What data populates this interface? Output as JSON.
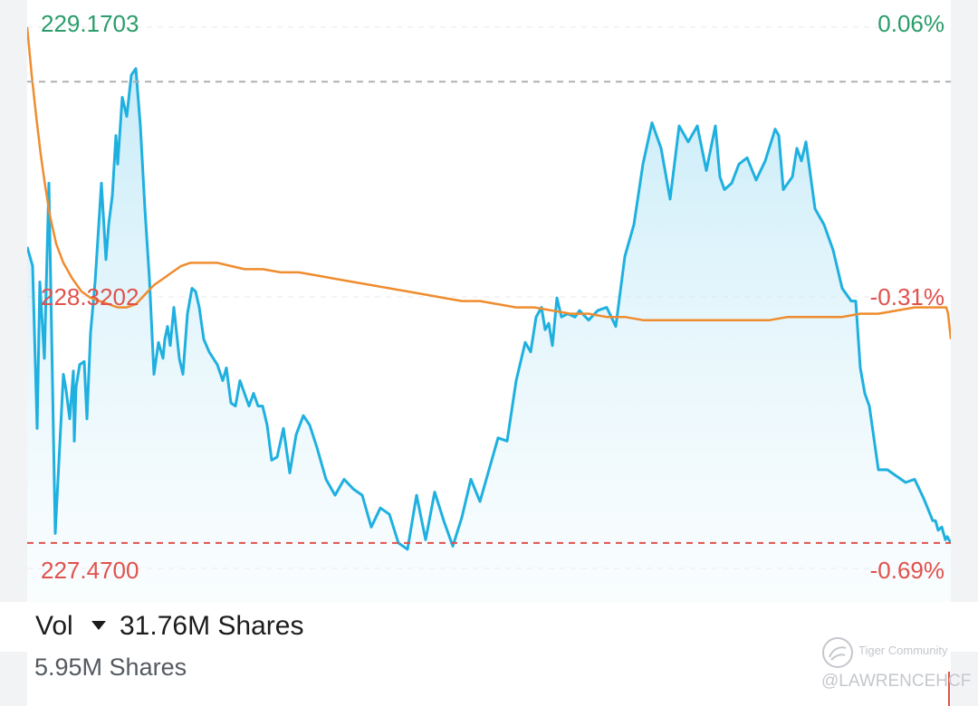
{
  "chart_data": {
    "type": "line",
    "y_labels": {
      "top_price": "229.1703",
      "mid_price": "228.3202",
      "bottom_price": "227.4700",
      "top_pct": "0.06%",
      "mid_pct": "-0.31%",
      "bottom_pct": "-0.69%"
    },
    "ylim": [
      227.47,
      229.1703
    ],
    "reference_lines": {
      "upper_dashed": 228.999,
      "lower_dashed": 227.55
    },
    "series": [
      {
        "line_color": "#1fb0e0",
        "fill": true,
        "x": [
          0,
          6,
          11,
          14,
          19,
          24,
          31,
          40,
          43,
          47,
          51,
          52,
          54,
          58,
          63,
          66,
          70,
          75,
          82,
          87,
          90,
          94,
          98,
          100,
          105,
          110,
          115,
          120,
          125,
          130,
          135,
          140,
          145,
          150,
          152,
          155,
          158,
          162,
          168,
          172,
          177,
          182,
          186,
          190,
          195,
          201,
          210,
          216,
          220,
          225,
          230,
          235,
          240,
          245,
          250,
          255,
          260,
          265,
          270,
          276,
          283,
          290,
          297,
          305,
          312,
          320,
          330,
          340,
          350,
          360,
          370,
          380,
          390,
          400,
          410,
          420,
          430,
          440,
          450,
          460,
          470,
          480,
          490,
          500,
          510,
          520,
          530,
          540,
          550,
          556,
          562,
          568,
          572,
          576,
          580,
          585,
          590,
          597,
          605,
          610,
          620,
          630,
          640,
          650,
          660,
          670,
          680,
          690,
          700,
          710,
          720,
          730,
          740,
          750,
          755,
          760,
          765,
          770,
          778,
          786,
          795,
          805,
          815,
          826,
          830,
          835,
          840,
          845,
          850,
          855,
          860,
          870,
          880,
          890,
          900,
          910,
          915,
          920,
          925,
          930,
          940,
          950,
          960,
          970,
          980,
          990,
          1000,
          1003,
          1006,
          1010,
          1014,
          1016,
          1020
        ],
        "values": [
          228.48,
          228.42,
          227.91,
          228.37,
          228.13,
          228.68,
          227.58,
          228.08,
          228.03,
          227.94,
          228.09,
          227.87,
          228.04,
          228.11,
          228.12,
          227.94,
          228.21,
          228.37,
          228.68,
          228.44,
          228.55,
          228.64,
          228.83,
          228.74,
          228.95,
          228.89,
          229.02,
          229.04,
          228.86,
          228.6,
          228.38,
          228.08,
          228.18,
          228.13,
          228.19,
          228.23,
          228.17,
          228.29,
          228.13,
          228.08,
          228.27,
          228.35,
          228.34,
          228.29,
          228.19,
          228.15,
          228.11,
          228.06,
          228.1,
          227.99,
          227.98,
          228.06,
          228.02,
          227.98,
          228.02,
          227.98,
          227.98,
          227.92,
          227.81,
          227.82,
          227.91,
          227.77,
          227.89,
          227.95,
          227.92,
          227.85,
          227.75,
          227.7,
          227.75,
          227.72,
          227.7,
          227.6,
          227.66,
          227.64,
          227.55,
          227.53,
          227.7,
          227.56,
          227.71,
          227.62,
          227.54,
          227.63,
          227.75,
          227.68,
          227.78,
          227.88,
          227.87,
          228.06,
          228.18,
          228.15,
          228.26,
          228.29,
          228.22,
          228.24,
          228.17,
          228.32,
          228.26,
          228.27,
          228.26,
          228.28,
          228.25,
          228.28,
          228.29,
          228.23,
          228.45,
          228.55,
          228.74,
          228.87,
          228.79,
          228.63,
          228.86,
          228.81,
          228.86,
          228.72,
          228.79,
          228.86,
          228.7,
          228.66,
          228.68,
          228.74,
          228.76,
          228.69,
          228.75,
          228.85,
          228.83,
          228.66,
          228.68,
          228.7,
          228.79,
          228.75,
          228.81,
          228.6,
          228.55,
          228.47,
          228.35,
          228.31,
          228.31,
          228.1,
          228.02,
          227.98,
          227.78,
          227.78,
          227.76,
          227.74,
          227.75,
          227.69,
          227.62,
          227.62,
          227.59,
          227.6,
          227.56,
          227.57,
          227.55
        ]
      },
      {
        "line_color": "#ef8c2e",
        "fill": false,
        "x": [
          0,
          5,
          10,
          15,
          20,
          25,
          32,
          40,
          50,
          60,
          70,
          80,
          90,
          100,
          110,
          120,
          130,
          140,
          150,
          160,
          170,
          180,
          190,
          200,
          210,
          225,
          240,
          260,
          280,
          300,
          320,
          340,
          360,
          380,
          400,
          420,
          440,
          460,
          480,
          500,
          520,
          540,
          560,
          580,
          600,
          620,
          640,
          660,
          680,
          700,
          720,
          740,
          760,
          780,
          800,
          820,
          840,
          860,
          880,
          900,
          920,
          940,
          960,
          980,
          1000,
          1010,
          1015,
          1017,
          1020
        ],
        "values": [
          229.17,
          229.02,
          228.89,
          228.77,
          228.67,
          228.58,
          228.49,
          228.43,
          228.38,
          228.34,
          228.32,
          228.31,
          228.3,
          228.29,
          228.29,
          228.3,
          228.33,
          228.36,
          228.38,
          228.4,
          228.42,
          228.43,
          228.43,
          228.43,
          228.43,
          228.42,
          228.41,
          228.41,
          228.4,
          228.4,
          228.39,
          228.38,
          228.37,
          228.36,
          228.35,
          228.34,
          228.33,
          228.32,
          228.31,
          228.31,
          228.3,
          228.29,
          228.29,
          228.28,
          228.27,
          228.27,
          228.26,
          228.26,
          228.25,
          228.25,
          228.25,
          228.25,
          228.25,
          228.25,
          228.25,
          228.25,
          228.26,
          228.26,
          228.26,
          228.26,
          228.27,
          228.27,
          228.28,
          228.29,
          228.29,
          228.29,
          228.29,
          228.27,
          228.19
        ]
      }
    ]
  },
  "volume": {
    "label": "Vol",
    "total": "31.76M Shares",
    "sub_label": "5.95M Shares"
  },
  "colors": {
    "price_line": "#1fb0e0",
    "average_line": "#ef8c2e",
    "positive": "#2a9d6a",
    "negative": "#e0524d"
  },
  "watermark": {
    "brand": "Tiger Community",
    "user": "@LAWRENCEHCF"
  }
}
